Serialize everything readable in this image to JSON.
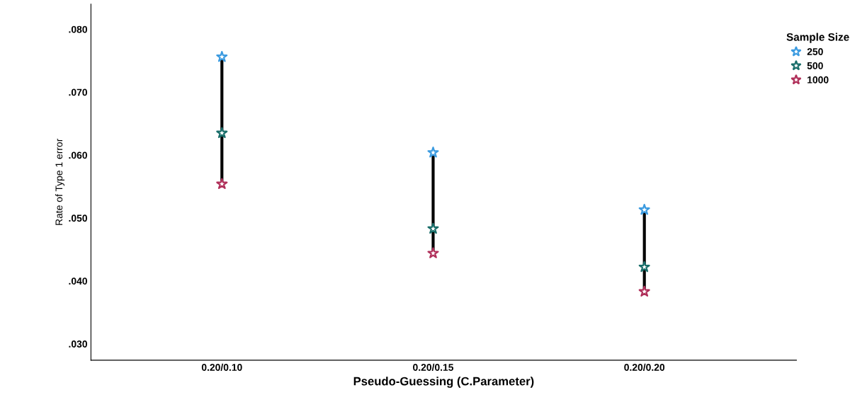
{
  "chart_data": {
    "type": "scatter",
    "xlabel": "Pseudo-Guessing (C.Parameter)",
    "ylabel": "Rate of Type 1 error",
    "legend_title": "Sample Size",
    "categories": [
      "0.20/0.10",
      "0.20/0.15",
      "0.20/0.20"
    ],
    "series": [
      {
        "name": "250",
        "color": "#3c9be0",
        "values": [
          0.0756,
          0.0604,
          0.0513
        ]
      },
      {
        "name": "500",
        "color": "#1a6e6a",
        "values": [
          0.0635,
          0.0483,
          0.0422
        ]
      },
      {
        "name": "1000",
        "color": "#b0305a",
        "values": [
          0.0554,
          0.0444,
          0.0383
        ]
      }
    ],
    "ylim": [
      0.0274,
      0.084
    ],
    "yticks": [
      {
        "value": 0.03,
        "label": ".030"
      },
      {
        "value": 0.04,
        "label": ".040"
      },
      {
        "value": 0.05,
        "label": ".050"
      },
      {
        "value": 0.06,
        "label": ".060"
      },
      {
        "value": 0.07,
        "label": ".070"
      },
      {
        "value": 0.08,
        "label": ".080"
      }
    ],
    "marker": "star",
    "grid": false,
    "legend": "top right"
  }
}
